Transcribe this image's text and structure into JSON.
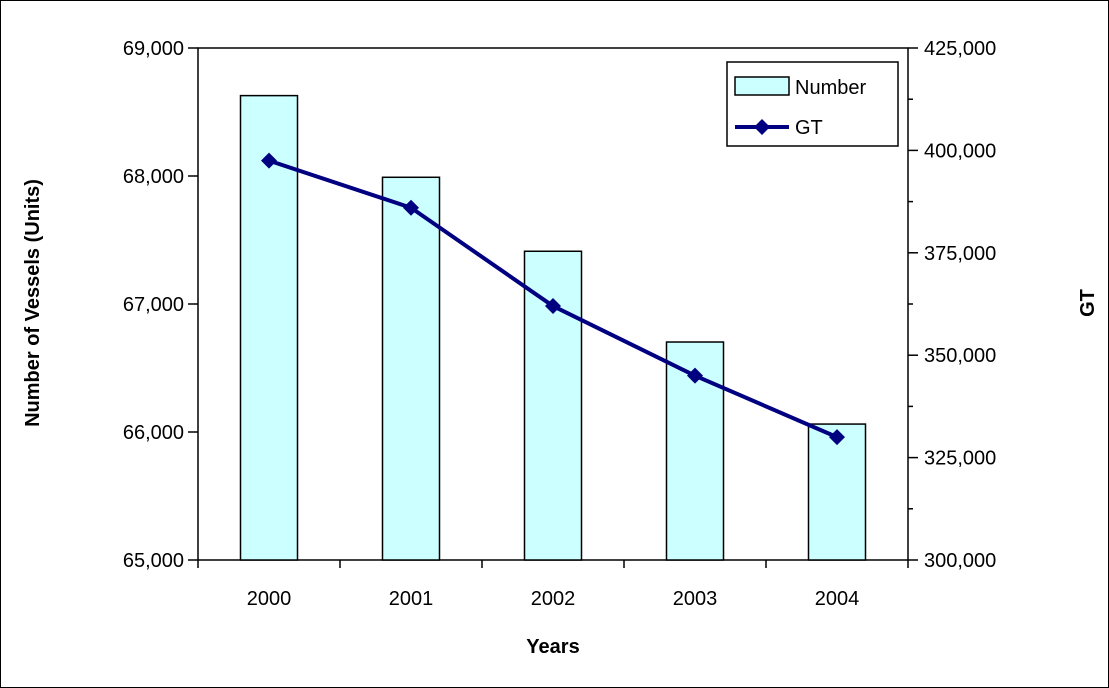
{
  "chart_data": {
    "type": "bar",
    "categories": [
      "2000",
      "2001",
      "2002",
      "2003",
      "2004"
    ],
    "xlabel": "Years",
    "ylabel": "Number of Vessels (Units)",
    "y2label": "GT",
    "ylim": [
      65000,
      69000
    ],
    "y2lim": [
      300000,
      425000
    ],
    "yticks": [
      "65,000",
      "66,000",
      "67,000",
      "68,000",
      "69,000"
    ],
    "y2ticks": [
      "300,000",
      "325,000",
      "350,000",
      "375,000",
      "400,000",
      "425,000"
    ],
    "series": [
      {
        "name": "Number",
        "type": "bar",
        "axis": "left",
        "values": [
          68628,
          67990,
          67412,
          66703,
          66062
        ]
      },
      {
        "name": "GT",
        "type": "line",
        "axis": "right",
        "values": [
          397500,
          386000,
          362000,
          345000,
          330000
        ]
      }
    ],
    "legend": "top-right",
    "colors": {
      "bar_fill": "#CCFFFF",
      "bar_stroke": "#000000",
      "line": "#000080"
    }
  }
}
